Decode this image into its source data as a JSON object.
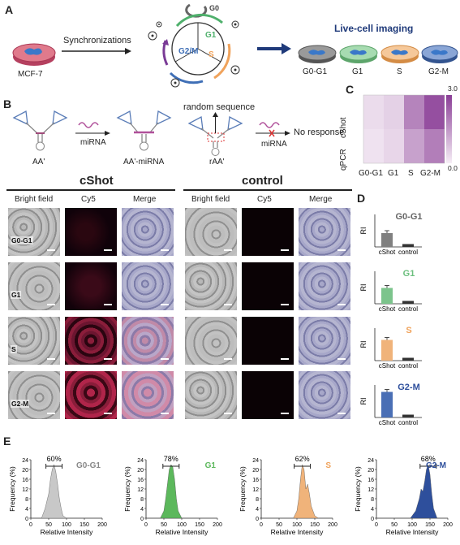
{
  "panels": {
    "A": "A",
    "B": "B",
    "C": "C",
    "D": "D",
    "E": "E"
  },
  "panelA": {
    "cell_line": "MCF-7",
    "sync_label": "Synchronizations",
    "cycle_phases": [
      "G0",
      "G1",
      "S",
      "G2/M"
    ],
    "imaging_title": "Live-cell imaging",
    "dishes": [
      "G0-G1",
      "G1",
      "S",
      "G2-M"
    ]
  },
  "panelB": {
    "probe_left": "AA'",
    "mirna_label": "miRNA",
    "probe_bound": "AA'-miRNA",
    "random_seq": "random sequence",
    "probe_random": "rAA'",
    "mirna_label2": "miRNA",
    "no_response": "No response",
    "group_cshot": "cShot",
    "group_control": "control",
    "col_headers": [
      "Bright field",
      "Cy5",
      "Merge",
      "Bright field",
      "Cy5",
      "Merge"
    ],
    "row_labels": [
      "G0-G1",
      "G1",
      "S",
      "G2-M"
    ]
  },
  "panelC": {
    "row_labels": [
      "cShot",
      "qPCR"
    ],
    "col_labels": [
      "G0-G1",
      "G1",
      "S",
      "G2-M"
    ],
    "scale_max": "3.0",
    "scale_min": "0.0",
    "colors": {
      "low": "#f6eef6",
      "high": "#8a3d96"
    }
  },
  "chart_data": [
    {
      "type": "heatmap",
      "rows": [
        "cShot",
        "qPCR"
      ],
      "columns": [
        "G0-G1",
        "G1",
        "S",
        "G2-M"
      ],
      "values": [
        [
          0.3,
          0.5,
          1.8,
          2.7
        ],
        [
          0.2,
          0.4,
          1.3,
          1.9
        ]
      ],
      "range": [
        0.0,
        3.0
      ]
    },
    {
      "type": "bar",
      "title": "G0-G1",
      "ylabel": "RI",
      "categories": [
        "cShot",
        "control"
      ],
      "values": [
        340,
        70
      ],
      "ylim": [
        0,
        800
      ],
      "colors": [
        "#808080",
        "#333333"
      ]
    },
    {
      "type": "bar",
      "title": "G1",
      "ylabel": "RI",
      "categories": [
        "cShot",
        "control"
      ],
      "values": [
        390,
        70
      ],
      "ylim": [
        0,
        800
      ],
      "colors": [
        "#7cc48c",
        "#333333"
      ]
    },
    {
      "type": "bar",
      "title": "S",
      "ylabel": "RI",
      "categories": [
        "cShot",
        "control"
      ],
      "values": [
        510,
        70
      ],
      "ylim": [
        0,
        800
      ],
      "colors": [
        "#f0b37a",
        "#333333"
      ]
    },
    {
      "type": "bar",
      "title": "G2-M",
      "ylabel": "RI",
      "categories": [
        "cShot",
        "control"
      ],
      "values": [
        630,
        70
      ],
      "ylim": [
        0,
        800
      ],
      "colors": [
        "#4a6fb5",
        "#333333"
      ]
    },
    {
      "type": "area",
      "title": "G0-G1",
      "xlabel": "Relative Intensity",
      "ylabel": "Frequency (%)",
      "xlim": [
        0,
        200
      ],
      "ylim": [
        0,
        24
      ],
      "annotation": "60%",
      "color": "#c8c8c8",
      "x": [
        30,
        40,
        50,
        55,
        60,
        65,
        70,
        75,
        80,
        85,
        90,
        100
      ],
      "y": [
        0,
        4,
        10,
        16,
        20,
        22,
        19,
        14,
        8,
        4,
        1,
        0
      ]
    },
    {
      "type": "area",
      "title": "G1",
      "xlabel": "Relative Intensity",
      "ylabel": "Frequency (%)",
      "xlim": [
        0,
        200
      ],
      "ylim": [
        0,
        24
      ],
      "annotation": "78%",
      "color": "#5cb85c",
      "x": [
        40,
        50,
        55,
        60,
        65,
        70,
        75,
        80,
        85,
        90,
        100
      ],
      "y": [
        0,
        3,
        8,
        14,
        20,
        22,
        21,
        16,
        8,
        3,
        0
      ]
    },
    {
      "type": "area",
      "title": "S",
      "xlabel": "Relative Intensity",
      "ylabel": "Frequency (%)",
      "xlim": [
        0,
        200
      ],
      "ylim": [
        0,
        24
      ],
      "annotation": "62%",
      "color": "#f0b37a",
      "x": [
        90,
        100,
        105,
        110,
        115,
        120,
        125,
        130,
        135,
        140,
        150,
        160
      ],
      "y": [
        0,
        3,
        8,
        16,
        22,
        20,
        12,
        14,
        10,
        5,
        1,
        0
      ]
    },
    {
      "type": "area",
      "title": "G2-M",
      "xlabel": "Relative Intensity",
      "ylabel": "Frequency (%)",
      "xlim": [
        0,
        200
      ],
      "ylim": [
        0,
        24
      ],
      "annotation": "68%",
      "color": "#2e4f9c",
      "x": [
        95,
        110,
        120,
        125,
        130,
        135,
        140,
        145,
        150,
        155,
        160,
        170
      ],
      "y": [
        0,
        3,
        8,
        12,
        11,
        15,
        20,
        22,
        18,
        10,
        4,
        0
      ]
    }
  ],
  "axes": {
    "ri_label": "RI",
    "bar_cats": [
      "cShot",
      "control"
    ],
    "hist_xlabel": "Relative Intensity",
    "hist_ylabel": "Frequency (%)",
    "hist_xticks": [
      "0",
      "50",
      "100",
      "150",
      "200"
    ],
    "hist_yticks": [
      "0",
      "4",
      "8",
      "12",
      "16",
      "20",
      "24"
    ]
  }
}
